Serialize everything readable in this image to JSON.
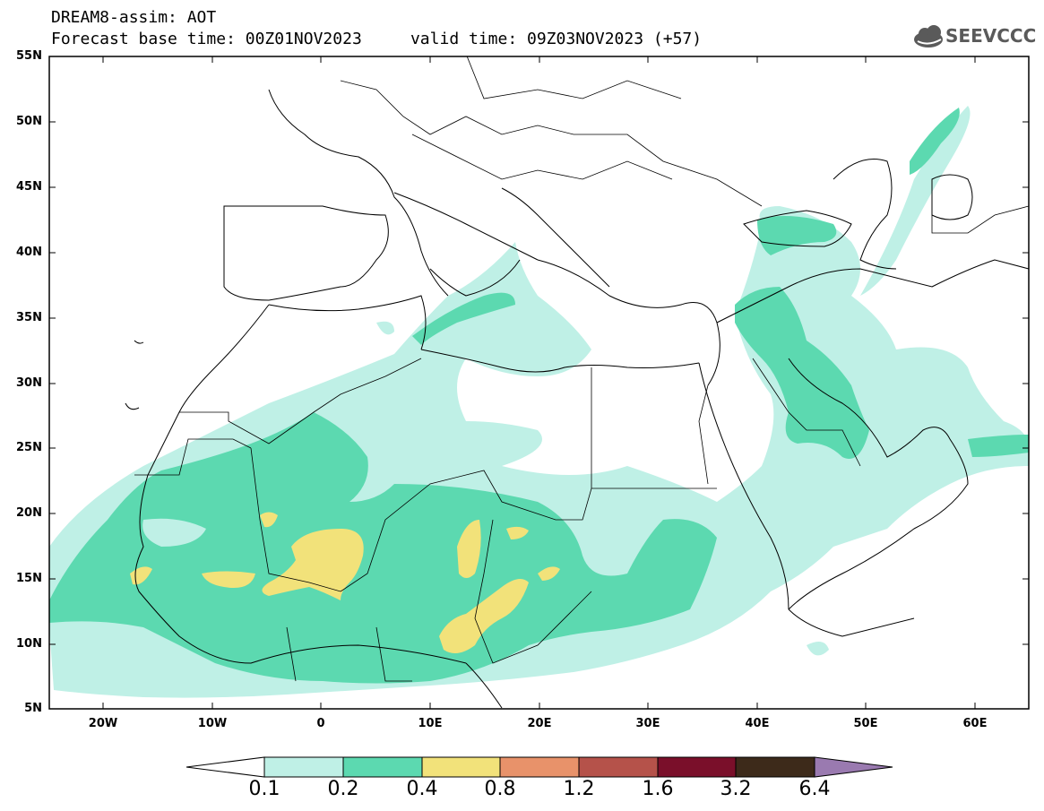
{
  "title": {
    "line1": "DREAM8-assim: AOT",
    "line2": "Forecast base time: 00Z01NOV2023     valid time: 09Z03NOV2023 (+57)"
  },
  "logo": {
    "text": "SEEVCCC",
    "icon": "cloud-icon"
  },
  "map": {
    "lat_labels": [
      "55N",
      "50N",
      "45N",
      "40N",
      "35N",
      "30N",
      "25N",
      "20N",
      "15N",
      "10N",
      "5N"
    ],
    "lon_labels": [
      "20W",
      "10W",
      "0",
      "10E",
      "20E",
      "30E",
      "40E",
      "50E",
      "60E"
    ],
    "lat_range": [
      5,
      55
    ],
    "lon_range": [
      -25,
      65
    ],
    "field": "AOT",
    "colors": {
      "c01": "#bff0e6",
      "c02": "#5cd9b0",
      "c04": "#f2e27a",
      "c08": "#e8926a",
      "c12": "#b5524a",
      "c16": "#7a0f2a",
      "c32": "#3d2a1a",
      "c64": "#9a7ab0"
    }
  },
  "colorbar": {
    "labels": [
      "0.1",
      "0.2",
      "0.4",
      "0.8",
      "1.2",
      "1.6",
      "3.2",
      "6.4"
    ],
    "colors": [
      "#ffffff",
      "#bff0e6",
      "#5cd9b0",
      "#f2e27a",
      "#e8926a",
      "#b5524a",
      "#7a0f2a",
      "#3d2a1a",
      "#9a7ab0"
    ]
  }
}
